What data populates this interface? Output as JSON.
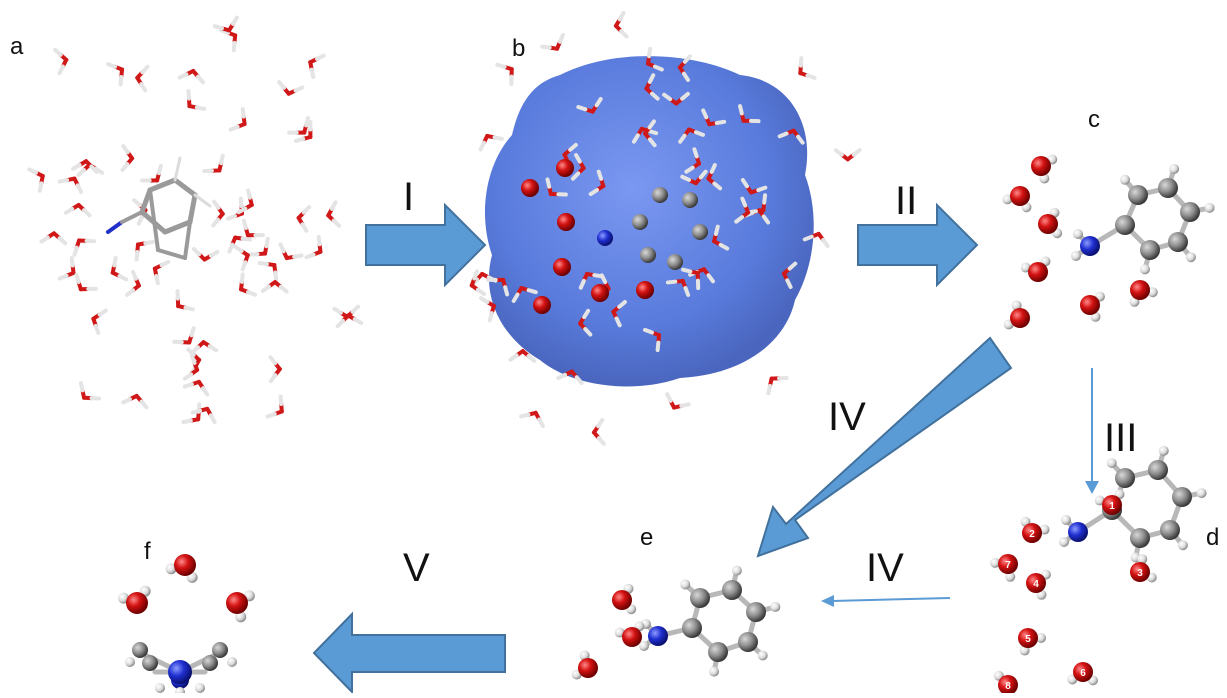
{
  "panels": {
    "a": "a",
    "b": "b",
    "c": "c",
    "d": "d",
    "e": "e",
    "f": "f"
  },
  "steps": {
    "s1": "I",
    "s2": "II",
    "s3": "III",
    "s4a": "IV",
    "s4b": "IV",
    "s5": "V"
  },
  "atom_numbers": [
    "1",
    "2",
    "3",
    "4",
    "5",
    "6",
    "7",
    "8"
  ],
  "colors": {
    "arrow_fill": "#5b9bd5",
    "arrow_stroke": "#41719c",
    "thin_arrow": "#5b9bd5",
    "oxygen": "#d41212",
    "hydrogen": "#e8e8e8",
    "carbon": "#8c8c8c",
    "nitrogen": "#1f2fd0",
    "surface": "#4a6fd8"
  }
}
